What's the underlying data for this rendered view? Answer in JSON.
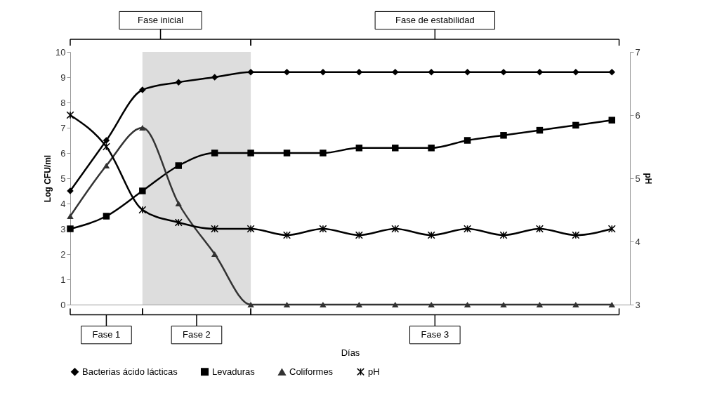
{
  "chart_data": {
    "type": "line",
    "ylabel": "Log CFU/ml",
    "y2label": "pH",
    "xlabel": "Días",
    "categories": [
      null,
      null,
      null,
      null,
      null,
      null,
      null,
      null,
      null,
      null,
      null,
      null,
      null,
      null,
      null,
      null
    ],
    "series": [
      {
        "name": "Bacterias ácido lácticas",
        "color": "#000000",
        "marker": "diamond",
        "values": [
          4.5,
          6.5,
          8.5,
          8.8,
          9.0,
          9.2,
          9.2,
          9.2,
          9.2,
          9.2,
          9.2,
          9.2,
          9.2,
          9.2,
          9.2,
          9.2
        ]
      },
      {
        "name": "Levaduras",
        "color": "#000000",
        "marker": "square",
        "values": [
          3.0,
          3.5,
          4.5,
          5.5,
          6.0,
          6.0,
          6.0,
          6.0,
          6.2,
          6.2,
          6.2,
          6.5,
          6.7,
          6.9,
          7.1,
          7.3
        ]
      },
      {
        "name": "Coliformes",
        "color": "#333333",
        "marker": "triangle",
        "values": [
          3.5,
          5.5,
          7.0,
          4.0,
          2.0,
          0,
          0,
          0,
          0,
          0,
          0,
          0,
          0,
          0,
          0,
          0
        ]
      },
      {
        "name": "pH",
        "color": "#000000",
        "marker": "cross",
        "axis": "y2",
        "values": [
          6.0,
          5.5,
          4.5,
          4.3,
          4.2,
          4.2,
          4.1,
          4.2,
          4.1,
          4.2,
          4.1,
          4.2,
          4.1,
          4.2,
          4.1,
          4.2
        ]
      }
    ],
    "ylim": [
      0,
      10
    ],
    "yticks": [
      0,
      1,
      2,
      3,
      4,
      5,
      6,
      7,
      8,
      9,
      10
    ],
    "y2lim": [
      3,
      7
    ],
    "y2ticks": [
      {
        "value": 3,
        "label": "3"
      },
      {
        "value": 4,
        "label": "4"
      },
      {
        "value": 5,
        "label": "5"
      },
      {
        "value": 6,
        "label": "6"
      },
      {
        "value": 7,
        "label": "7"
      }
    ],
    "annotations": [
      "Fase inicial",
      "Fase de estabilidad",
      "Fase 1",
      "Fase 2",
      "Fase 3"
    ],
    "legend": "bottom"
  }
}
